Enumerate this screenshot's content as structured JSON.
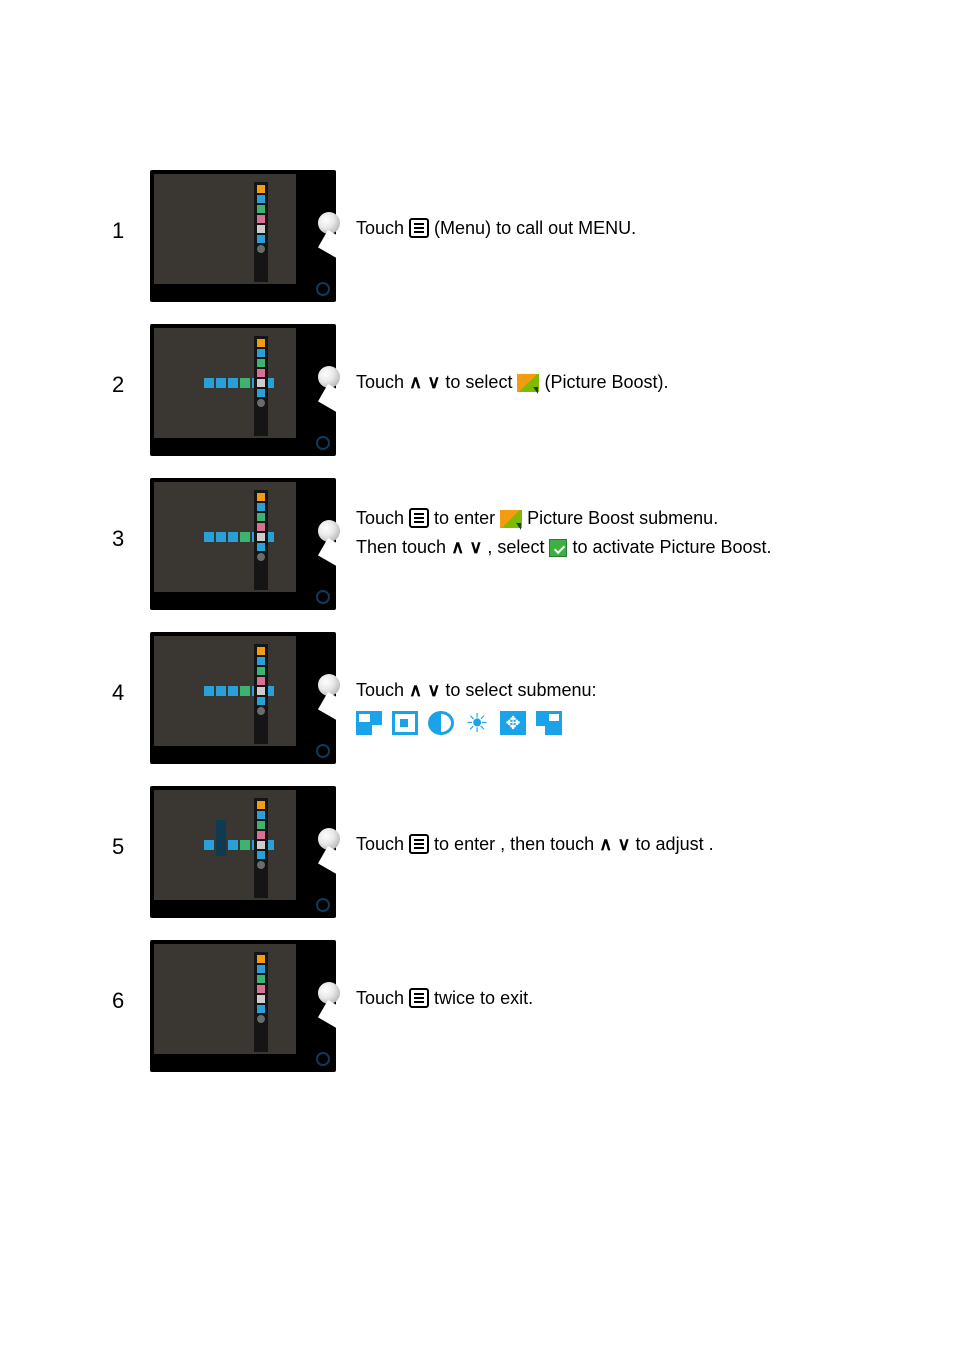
{
  "colors": {
    "text": "#000000",
    "bg": "#ffffff",
    "monitor_body": "#000000",
    "monitor_screen": "#3a3632",
    "accent_blue": "#1aa3e8",
    "accent_orange": "#f39c12",
    "accent_green": "#7fba00",
    "check_green": "#3cb043"
  },
  "typography": {
    "base_size_pt": 14,
    "number_size_pt": 17
  },
  "steps": [
    {
      "n": "1",
      "segments": [
        {
          "t": "text",
          "v": "Touch "
        },
        {
          "t": "menu"
        },
        {
          "t": "text",
          "v": " (Menu) to  call out MENU."
        }
      ],
      "screen": {
        "hrow": false,
        "vcol": false
      }
    },
    {
      "n": "2",
      "segments": [
        {
          "t": "text",
          "v": "Touch "
        },
        {
          "t": "chev",
          "v": "∧ ∨"
        },
        {
          "t": "text",
          "v": " to select "
        },
        {
          "t": "pb"
        },
        {
          "t": "text",
          "v": " (Picture Boost)."
        }
      ],
      "screen": {
        "hrow": true,
        "vcol": false
      }
    },
    {
      "n": "3",
      "line1": [
        {
          "t": "text",
          "v": "Touch "
        },
        {
          "t": "menu"
        },
        {
          "t": "text",
          "v": " to enter "
        },
        {
          "t": "pb"
        },
        {
          "t": "text",
          "v": "  Picture Boost  submenu."
        }
      ],
      "line2": [
        {
          "t": "text",
          "v": "Then touch "
        },
        {
          "t": "chev",
          "v": "∧ ∨"
        },
        {
          "t": "text",
          "v": " , select "
        },
        {
          "t": "check"
        },
        {
          "t": "text",
          "v": " to activate Picture Boost."
        }
      ],
      "screen": {
        "hrow": true,
        "vcol": false
      }
    },
    {
      "n": "4",
      "segments": [
        {
          "t": "text",
          "v": "Touch "
        },
        {
          "t": "chev",
          "v": "∧ ∨"
        },
        {
          "t": "text",
          "v": " to select submenu:"
        }
      ],
      "sub_icons": [
        "frame-size",
        "frame-pos",
        "contrast",
        "brightness",
        "move",
        "frame-alt"
      ],
      "screen": {
        "hrow": true,
        "vcol": false
      }
    },
    {
      "n": "5",
      "segments": [
        {
          "t": "text",
          "v": "Touch "
        },
        {
          "t": "menu"
        },
        {
          "t": "text",
          "v": " to enter , then touch "
        },
        {
          "t": "chev",
          "v": "∧ ∨"
        },
        {
          "t": "text",
          "v": " to adjust ."
        }
      ],
      "screen": {
        "hrow": true,
        "vcol": true
      }
    },
    {
      "n": "6",
      "segments": [
        {
          "t": "text",
          "v": "Touch "
        },
        {
          "t": "menu"
        },
        {
          "t": "text",
          "v": " twice to exit."
        }
      ],
      "screen": {
        "hrow": false,
        "vcol": false
      }
    }
  ]
}
